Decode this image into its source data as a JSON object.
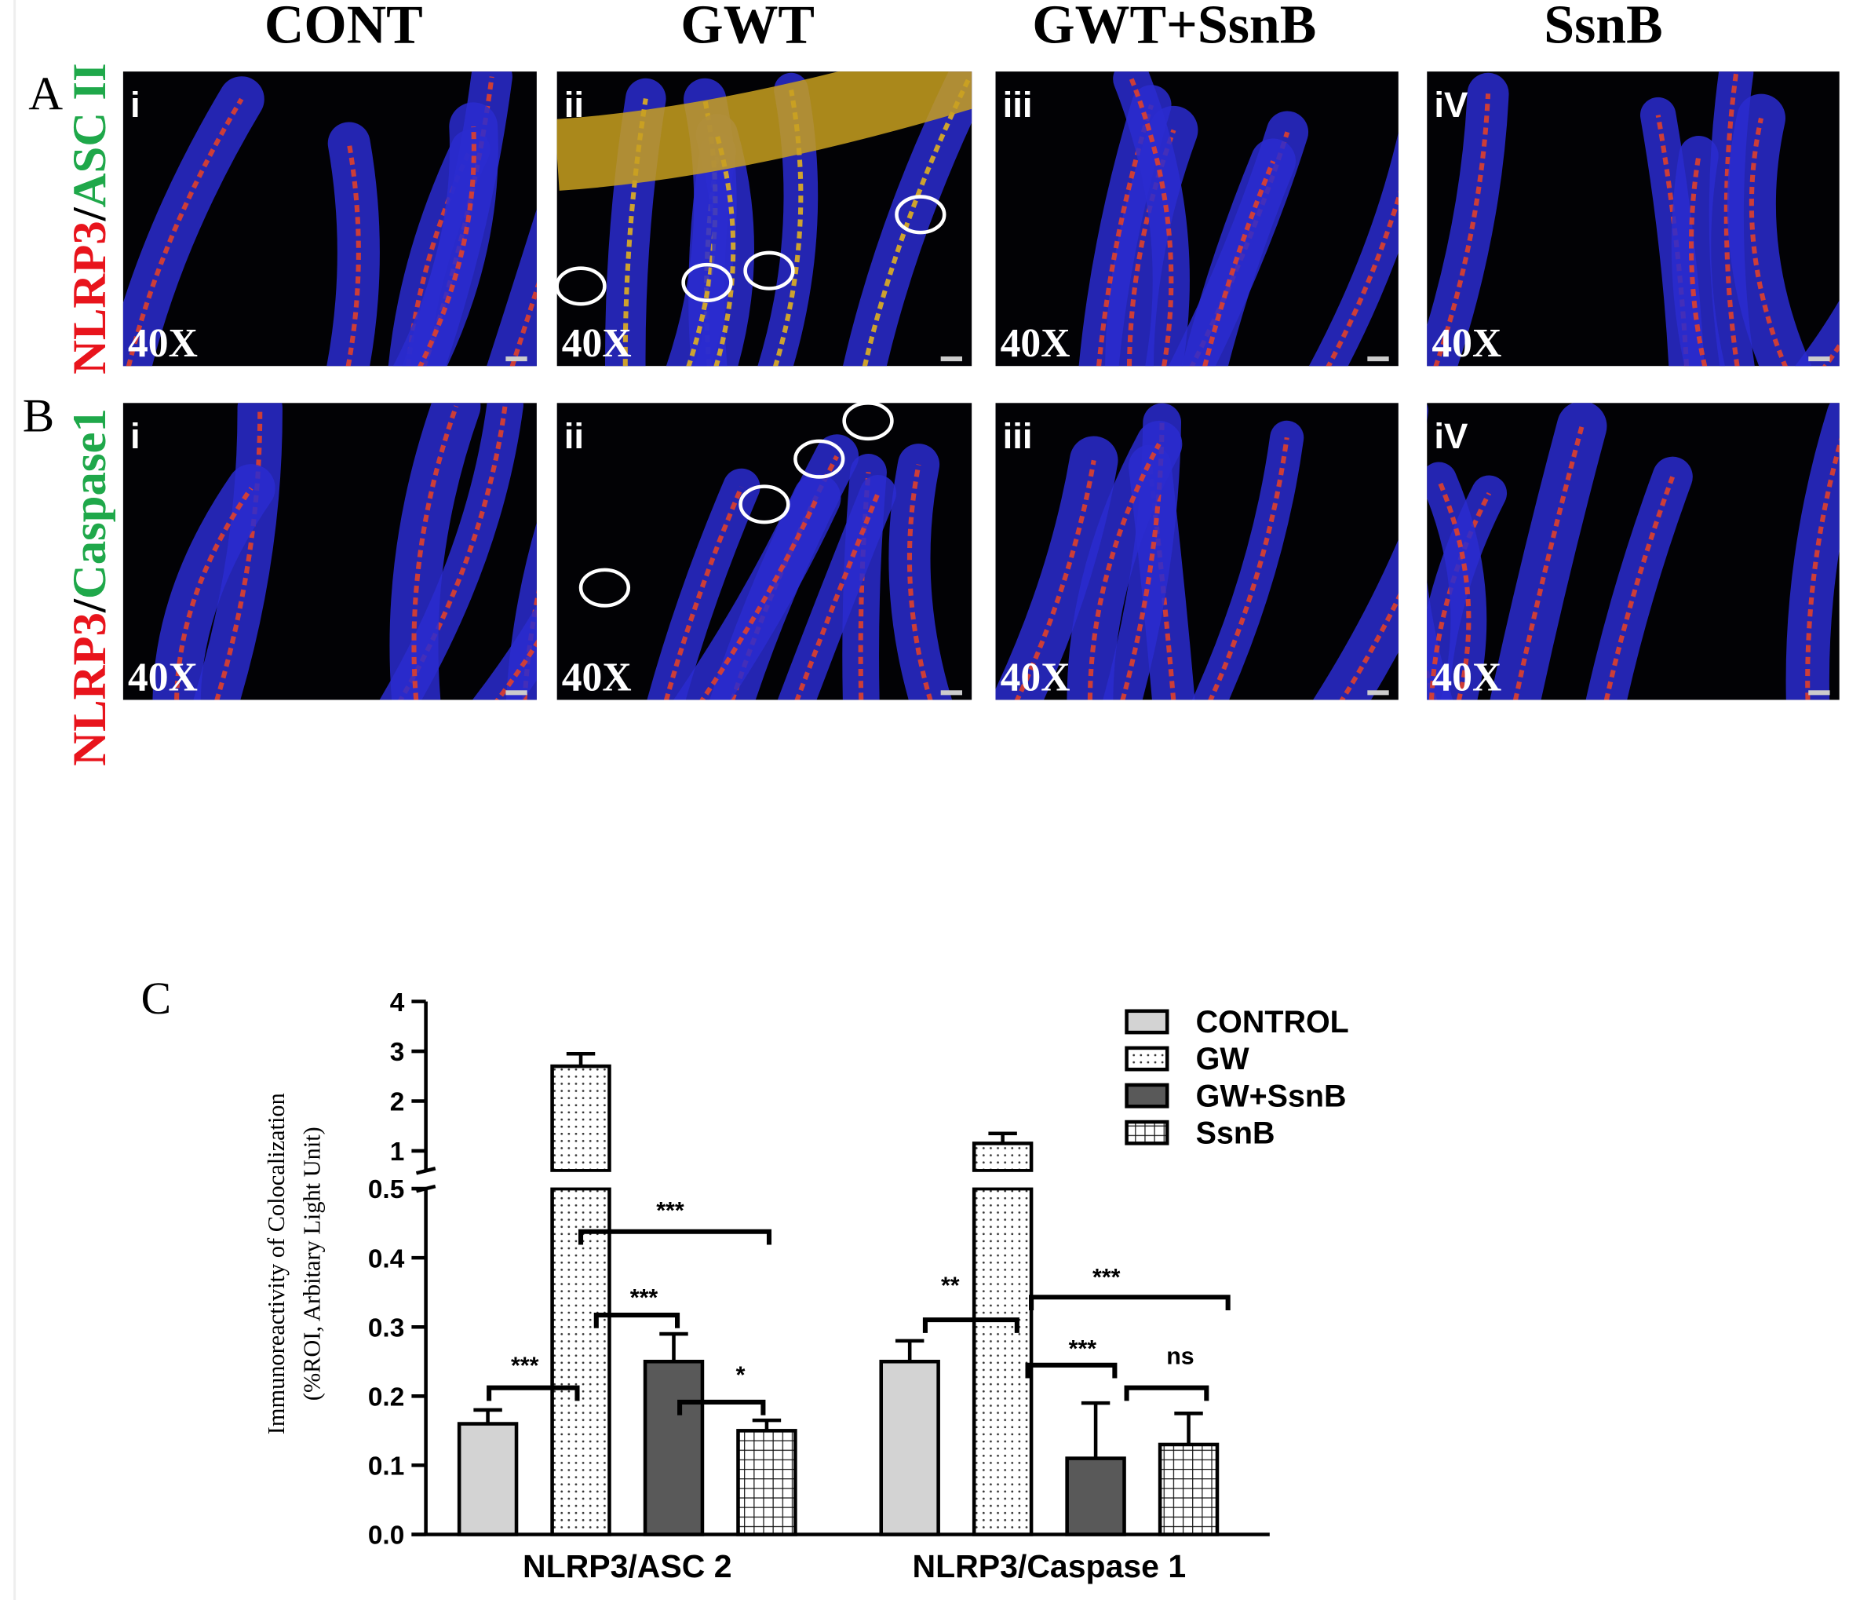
{
  "figure": {
    "columns": [
      "CONT",
      "GWT",
      "GWT+SsnB",
      "SsnB"
    ],
    "rows": [
      {
        "letter": "A",
        "stain_red": "NLRP3",
        "separator": "/",
        "stain_green": "ASC II",
        "panels": [
          {
            "numeral": "i",
            "magnification": "40X"
          },
          {
            "numeral": "ii",
            "magnification": "40X"
          },
          {
            "numeral": "iii",
            "magnification": "40X"
          },
          {
            "numeral": "iV",
            "magnification": "40X"
          }
        ]
      },
      {
        "letter": "B",
        "stain_red": "NLRP3",
        "separator": "/",
        "stain_green": "Caspase1",
        "panels": [
          {
            "numeral": "i",
            "magnification": "40X"
          },
          {
            "numeral": "ii",
            "magnification": "40X"
          },
          {
            "numeral": "iii",
            "magnification": "40X"
          },
          {
            "numeral": "iV",
            "magnification": "40X"
          }
        ]
      }
    ],
    "chart_letter": "C"
  },
  "chart_data": {
    "type": "bar",
    "y_label": [
      "Immunoreactivity of Colocalization",
      "(%ROI, Arbitary Light Unit)"
    ],
    "categories": [
      "NLRP3/ASC 2",
      "NLRP3/Caspase 1"
    ],
    "series": [
      {
        "name": "CONTROL",
        "color": "#d3d3d3",
        "pattern": "solid",
        "values": [
          0.16,
          0.25
        ],
        "errors": [
          0.02,
          0.03
        ]
      },
      {
        "name": "GW",
        "color": "#ffffff",
        "pattern": "dots",
        "values": [
          2.7,
          1.15
        ],
        "errors": [
          0.25,
          0.2
        ]
      },
      {
        "name": "GW+SsnB",
        "color": "#595959",
        "pattern": "solid",
        "values": [
          0.25,
          0.11
        ],
        "errors": [
          0.04,
          0.08
        ]
      },
      {
        "name": "SsnB",
        "color": "#ffffff",
        "pattern": "grid",
        "values": [
          0.15,
          0.13
        ],
        "errors": [
          0.015,
          0.045
        ]
      }
    ],
    "ylim": [
      0,
      0.5
    ],
    "yticks": [
      {
        "value": 0,
        "label": "0.0"
      },
      0.1,
      0.2,
      0.3,
      0.4,
      0.5
    ],
    "ylim_upper": [
      0.6,
      4
    ],
    "yticks_upper": [
      1,
      2,
      3,
      4
    ],
    "axis_break": true,
    "annotations": [
      "***",
      "***",
      "***",
      "*",
      "**",
      "***",
      "***",
      "ns"
    ]
  }
}
